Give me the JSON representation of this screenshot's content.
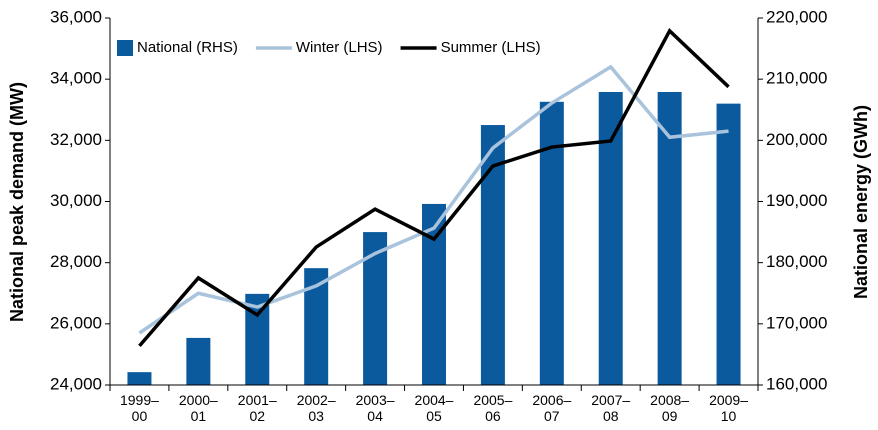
{
  "chart_data": {
    "type": "bar",
    "categories": [
      "1999–\n00",
      "2000–\n01",
      "2001–\n02",
      "2002–\n03",
      "2003–\n04",
      "2004–\n05",
      "2005–\n06",
      "2006–\n07",
      "2007–\n08",
      "2008–\n09",
      "2009–\n10"
    ],
    "series": [
      {
        "name": "National (RHS)",
        "type": "bar",
        "axis": "y2",
        "color": "#0b5a9e",
        "values": [
          162100,
          167700,
          174900,
          179100,
          185000,
          189600,
          202500,
          206300,
          207900,
          207900,
          206000
        ]
      },
      {
        "name": "Winter (LHS)",
        "type": "line",
        "color": "#a8c3db",
        "values": [
          25700,
          27000,
          26550,
          27240,
          28300,
          29130,
          31750,
          33220,
          34400,
          32100,
          32300
        ]
      },
      {
        "name": "Summer (LHS)",
        "type": "line",
        "color": "#000000",
        "values": [
          25280,
          27500,
          26290,
          28510,
          29750,
          28770,
          31160,
          31780,
          31980,
          35580,
          33750
        ]
      }
    ],
    "ylabel": "National peak demand (MW)",
    "y2label": "National energy (GWh)",
    "ylim": [
      24000,
      36000
    ],
    "yticks": [
      {
        "value": 24000,
        "label": "24,000"
      },
      {
        "value": 26000,
        "label": "26,000"
      },
      {
        "value": 28000,
        "label": "28,000"
      },
      {
        "value": 30000,
        "label": "30,000"
      },
      {
        "value": 32000,
        "label": "32,000"
      },
      {
        "value": 34000,
        "label": "34,000"
      },
      {
        "value": 36000,
        "label": "36,000"
      }
    ],
    "y2lim": [
      160000,
      220000
    ],
    "y2ticks": [
      {
        "value": 160000,
        "label": "160,000"
      },
      {
        "value": 170000,
        "label": "170,000"
      },
      {
        "value": 180000,
        "label": "180,000"
      },
      {
        "value": 190000,
        "label": "190,000"
      },
      {
        "value": 200000,
        "label": "200,000"
      },
      {
        "value": 210000,
        "label": "210,000"
      },
      {
        "value": 220000,
        "label": "220,000"
      }
    ],
    "legend": "top-left"
  }
}
